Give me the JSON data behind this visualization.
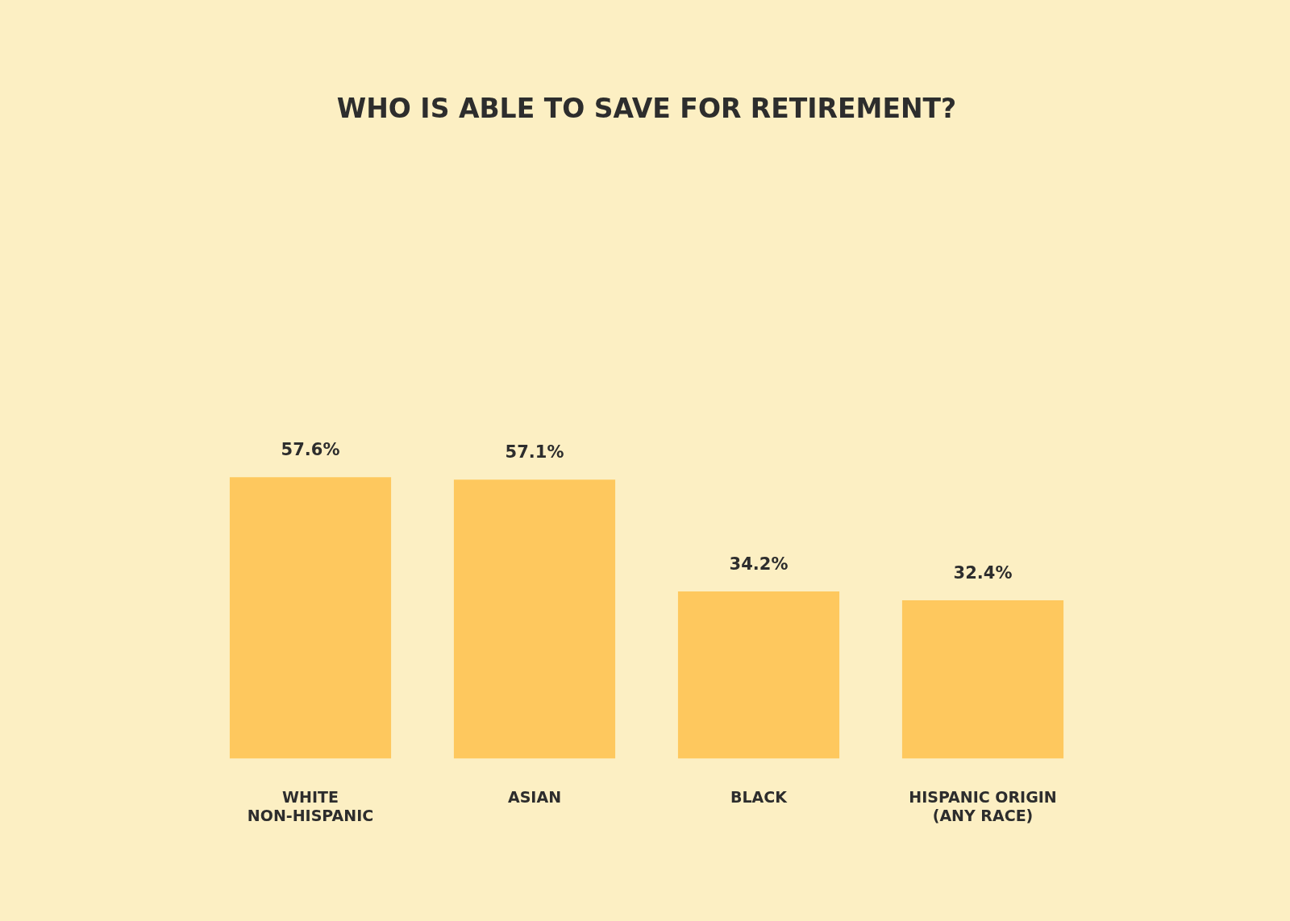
{
  "chart_data": {
    "type": "bar",
    "title": "WHO IS ABLE TO SAVE FOR RETIREMENT?",
    "categories": [
      "WHITE NON-HISPANIC",
      "ASIAN",
      "BLACK",
      "HISPANIC ORIGIN (ANY RACE)"
    ],
    "values": [
      57.6,
      57.1,
      34.2,
      32.4
    ],
    "value_labels": [
      "57.6%",
      "57.1%",
      "34.2%",
      "32.4%"
    ],
    "color": "#fec85e",
    "grid": false,
    "legend": false
  }
}
